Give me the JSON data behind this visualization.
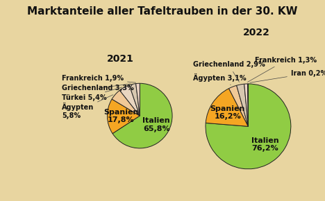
{
  "title": "Marktanteile aller Tafeltrauben in der 30. KW",
  "bg_color": "#e8d5a0",
  "year_2021": "2021",
  "year_2022": "2022",
  "pie1": {
    "labels": [
      "Italien",
      "Spanien",
      "Ägypten",
      "Türkei",
      "Griechenland",
      "Frankreich"
    ],
    "values": [
      65.8,
      17.8,
      5.8,
      5.4,
      3.3,
      1.9
    ],
    "colors": [
      "#90cc44",
      "#f5a623",
      "#f0c897",
      "#e8d5c0",
      "#d8c8b0",
      "#edd5c5"
    ]
  },
  "pie2": {
    "labels": [
      "Italien",
      "Spanien",
      "Ägypten",
      "Griechenland",
      "Frankreich",
      "Iran"
    ],
    "values": [
      76.2,
      16.2,
      3.1,
      2.9,
      1.3,
      0.2
    ],
    "colors": [
      "#90cc44",
      "#f5a623",
      "#f0c897",
      "#d8c8b0",
      "#edd5c5",
      "#c8b8a0"
    ]
  },
  "title_fontsize": 11,
  "year_fontsize": 10,
  "label_fontsize": 7.0,
  "pie_label_fontsize": 8.0
}
